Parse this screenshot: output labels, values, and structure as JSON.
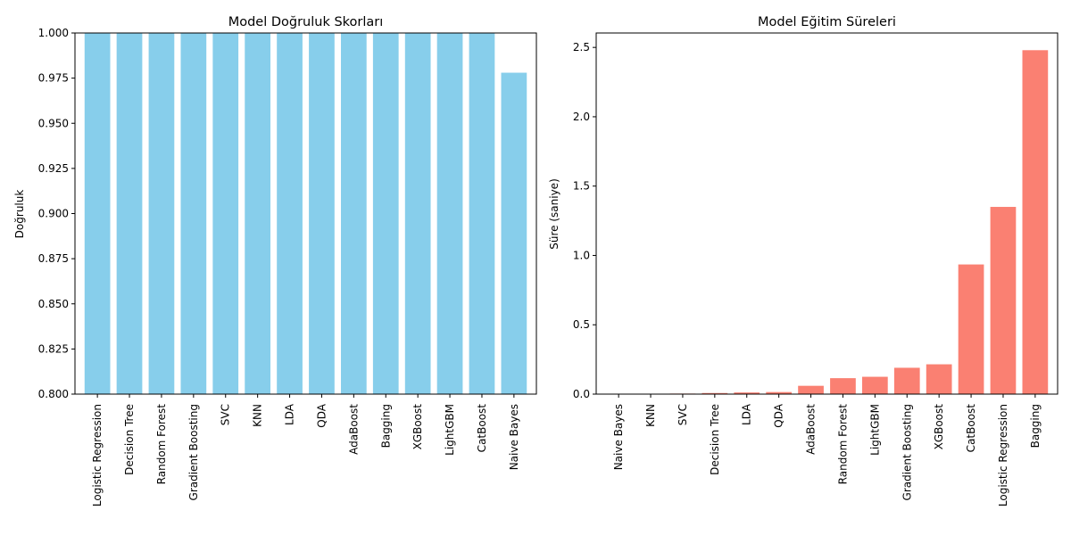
{
  "chart_data": [
    {
      "type": "bar",
      "title": "Model Doğruluk Skorları",
      "xlabel": "",
      "ylabel": "Doğruluk",
      "color": "#87ceeb",
      "ylim": [
        0.8,
        1.0
      ],
      "yticks": [
        "0.800",
        "0.825",
        "0.850",
        "0.875",
        "0.900",
        "0.925",
        "0.950",
        "0.975",
        "1.000"
      ],
      "ytick_values": [
        0.8,
        0.825,
        0.85,
        0.875,
        0.9,
        0.925,
        0.95,
        0.975,
        1.0
      ],
      "categories": [
        "Logistic Regression",
        "Decision Tree",
        "Random Forest",
        "Gradient Boosting",
        "SVC",
        "KNN",
        "LDA",
        "QDA",
        "AdaBoost",
        "Bagging",
        "XGBoost",
        "LightGBM",
        "CatBoost",
        "Naive Bayes"
      ],
      "values": [
        1.0,
        1.0,
        1.0,
        1.0,
        1.0,
        1.0,
        1.0,
        1.0,
        1.0,
        1.0,
        1.0,
        1.0,
        1.0,
        0.978
      ],
      "grid": false
    },
    {
      "type": "bar",
      "title": "Model Eğitim Süreleri",
      "xlabel": "",
      "ylabel": "Süre (saniye)",
      "color": "#fa8072",
      "ylim": [
        0,
        2.604
      ],
      "yticks": [
        "0.0",
        "0.5",
        "1.0",
        "1.5",
        "2.0",
        "2.5"
      ],
      "ytick_values": [
        0,
        0.5,
        1.0,
        1.5,
        2.0,
        2.5
      ],
      "categories": [
        "Naive Bayes",
        "KNN",
        "SVC",
        "Decision Tree",
        "LDA",
        "QDA",
        "AdaBoost",
        "Random Forest",
        "LightGBM",
        "Gradient Boosting",
        "XGBoost",
        "CatBoost",
        "Logistic Regression",
        "Bagging"
      ],
      "values": [
        0.002,
        0.002,
        0.004,
        0.008,
        0.012,
        0.015,
        0.06,
        0.115,
        0.125,
        0.19,
        0.215,
        0.935,
        1.35,
        2.48
      ],
      "grid": false
    }
  ]
}
